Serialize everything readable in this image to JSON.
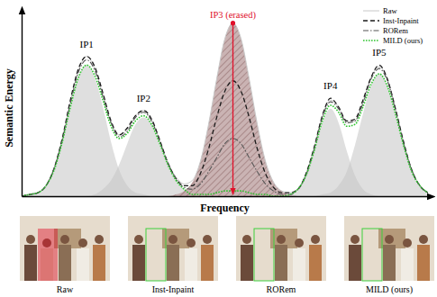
{
  "chart_data": {
    "type": "line",
    "x_label": "Frequency",
    "y_label": "Semantic Energy",
    "xlim": [
      0,
      100
    ],
    "ylim": [
      0,
      1.05
    ],
    "tick_labels": false,
    "legend": "upper right",
    "x": [
      0,
      2,
      4,
      6,
      8,
      10,
      12,
      14,
      16,
      18,
      20,
      22,
      24,
      26,
      28,
      30,
      32,
      34,
      36,
      38,
      40,
      42,
      44,
      46,
      48,
      50,
      52,
      54,
      56,
      58,
      60,
      62,
      64,
      66,
      68,
      70,
      72,
      74,
      76,
      78,
      80,
      82,
      84,
      86,
      88,
      90,
      92,
      94,
      96,
      98,
      100
    ],
    "components": [
      {
        "label": "IP1",
        "color": "#c4c4c4",
        "values": [
          0,
          0.01,
          0.02,
          0.06,
          0.15,
          0.31,
          0.51,
          0.68,
          0.75,
          0.68,
          0.51,
          0.31,
          0.15,
          0.06,
          0.02,
          0.01,
          0,
          0,
          0,
          0,
          0,
          0,
          0,
          0,
          0,
          0,
          0,
          0,
          0,
          0,
          0,
          0,
          0,
          0,
          0,
          0,
          0,
          0,
          0,
          0,
          0,
          0,
          0,
          0,
          0,
          0,
          0,
          0,
          0,
          0,
          0
        ]
      },
      {
        "label": "IP2",
        "color": "#c4c4c4",
        "values": [
          0,
          0,
          0,
          0,
          0,
          0,
          0,
          0,
          0,
          0.01,
          0.04,
          0.09,
          0.18,
          0.3,
          0.41,
          0.45,
          0.41,
          0.3,
          0.18,
          0.09,
          0.04,
          0.01,
          0,
          0,
          0,
          0,
          0,
          0,
          0,
          0,
          0,
          0,
          0,
          0,
          0,
          0,
          0,
          0,
          0,
          0,
          0,
          0,
          0,
          0,
          0,
          0,
          0,
          0,
          0,
          0,
          0
        ]
      },
      {
        "label": "IP3 (erased)",
        "color": "#b89a9a",
        "line_style": "hatched",
        "values": [
          0,
          0,
          0,
          0,
          0,
          0,
          0,
          0,
          0,
          0,
          0,
          0,
          0,
          0,
          0,
          0,
          0,
          0,
          0,
          0.01,
          0.03,
          0.08,
          0.2,
          0.41,
          0.67,
          0.9,
          0.99,
          0.9,
          0.67,
          0.41,
          0.2,
          0.08,
          0.03,
          0.01,
          0,
          0,
          0,
          0,
          0,
          0,
          0,
          0,
          0,
          0,
          0,
          0,
          0,
          0,
          0,
          0,
          0
        ]
      },
      {
        "label": "IP4",
        "color": "#c4c4c4",
        "values": [
          0,
          0,
          0,
          0,
          0,
          0,
          0,
          0,
          0,
          0,
          0,
          0,
          0,
          0,
          0,
          0,
          0,
          0,
          0,
          0,
          0,
          0,
          0,
          0,
          0,
          0,
          0,
          0,
          0,
          0,
          0,
          0,
          0,
          0.01,
          0.04,
          0.12,
          0.26,
          0.42,
          0.5,
          0.42,
          0.26,
          0.12,
          0.04,
          0.01,
          0,
          0,
          0,
          0,
          0,
          0,
          0
        ]
      },
      {
        "label": "IP5",
        "color": "#c4c4c4",
        "values": [
          0,
          0,
          0,
          0,
          0,
          0,
          0,
          0,
          0,
          0,
          0,
          0,
          0,
          0,
          0,
          0,
          0,
          0,
          0,
          0,
          0,
          0,
          0,
          0,
          0,
          0,
          0,
          0,
          0,
          0,
          0,
          0,
          0,
          0,
          0,
          0,
          0,
          0.01,
          0.02,
          0.06,
          0.14,
          0.29,
          0.47,
          0.63,
          0.7,
          0.63,
          0.47,
          0.29,
          0.14,
          0.06,
          0.02
        ]
      }
    ],
    "series": [
      {
        "name": "Raw",
        "color": "#c8c8c8",
        "line_style": "solid",
        "values": [
          0,
          0.01,
          0.02,
          0.06,
          0.16,
          0.33,
          0.54,
          0.72,
          0.8,
          0.73,
          0.58,
          0.42,
          0.35,
          0.38,
          0.46,
          0.49,
          0.43,
          0.32,
          0.19,
          0.11,
          0.07,
          0.09,
          0.2,
          0.41,
          0.67,
          0.9,
          0.99,
          0.9,
          0.67,
          0.41,
          0.2,
          0.08,
          0.03,
          0.02,
          0.04,
          0.13,
          0.28,
          0.46,
          0.55,
          0.51,
          0.42,
          0.43,
          0.54,
          0.68,
          0.74,
          0.67,
          0.5,
          0.31,
          0.15,
          0.06,
          0.02
        ]
      },
      {
        "name": "Inst-Inpaint",
        "color": "#1a1a1a",
        "line_style": "dashed",
        "values": [
          0,
          0.01,
          0.02,
          0.06,
          0.16,
          0.33,
          0.55,
          0.73,
          0.8,
          0.74,
          0.59,
          0.43,
          0.35,
          0.39,
          0.46,
          0.49,
          0.44,
          0.32,
          0.19,
          0.1,
          0.06,
          0.06,
          0.13,
          0.27,
          0.45,
          0.6,
          0.66,
          0.6,
          0.45,
          0.27,
          0.13,
          0.05,
          0.02,
          0.02,
          0.04,
          0.13,
          0.28,
          0.46,
          0.56,
          0.51,
          0.43,
          0.44,
          0.55,
          0.68,
          0.75,
          0.67,
          0.5,
          0.31,
          0.15,
          0.06,
          0.02
        ]
      },
      {
        "name": "RORem",
        "color": "#555555",
        "line_style": "dashdot",
        "values": [
          0,
          0.01,
          0.02,
          0.06,
          0.16,
          0.32,
          0.53,
          0.71,
          0.78,
          0.72,
          0.57,
          0.42,
          0.34,
          0.37,
          0.45,
          0.48,
          0.43,
          0.31,
          0.19,
          0.1,
          0.05,
          0.04,
          0.07,
          0.14,
          0.22,
          0.3,
          0.33,
          0.3,
          0.22,
          0.14,
          0.07,
          0.03,
          0.01,
          0.01,
          0.04,
          0.12,
          0.27,
          0.45,
          0.54,
          0.5,
          0.42,
          0.43,
          0.53,
          0.67,
          0.73,
          0.66,
          0.49,
          0.3,
          0.15,
          0.06,
          0.02
        ]
      },
      {
        "name": "MILD (ours)",
        "color": "#2ec42e",
        "line_style": "dotted",
        "values": [
          0,
          0.01,
          0.02,
          0.06,
          0.15,
          0.31,
          0.51,
          0.68,
          0.75,
          0.69,
          0.55,
          0.4,
          0.33,
          0.36,
          0.43,
          0.46,
          0.41,
          0.3,
          0.18,
          0.09,
          0.04,
          0.01,
          0.01,
          0.01,
          0.02,
          0.03,
          0.03,
          0.03,
          0.02,
          0.01,
          0.01,
          0,
          0,
          0.01,
          0.04,
          0.12,
          0.26,
          0.43,
          0.52,
          0.48,
          0.4,
          0.41,
          0.51,
          0.64,
          0.7,
          0.63,
          0.47,
          0.29,
          0.14,
          0.06,
          0.02
        ]
      }
    ]
  },
  "images": {
    "captions": [
      "Raw",
      "Inst-Inpaint",
      "RORem",
      "MILD (ours)"
    ]
  }
}
